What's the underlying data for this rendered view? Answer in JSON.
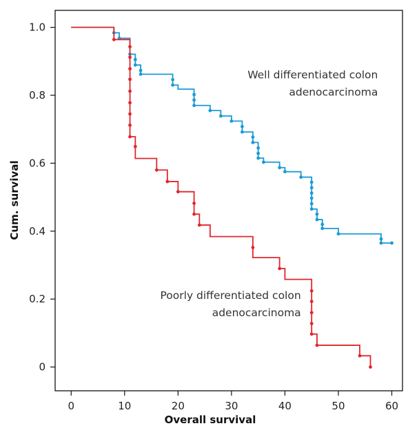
{
  "chart_data": {
    "type": "line",
    "subtype": "kaplan-meier-step",
    "xlabel": "Overall survival",
    "ylabel": "Cum. survival",
    "xlim": [
      -3,
      62
    ],
    "ylim": [
      -0.07,
      1.05
    ],
    "x_ticks": [
      0,
      10,
      20,
      30,
      40,
      50,
      60
    ],
    "x_tick_labels": [
      "0",
      "10",
      "20",
      "30",
      "40",
      "50",
      "60"
    ],
    "y_ticks": [
      0,
      0.2,
      0.4,
      0.6,
      0.8,
      1.0
    ],
    "y_tick_labels": [
      "0",
      "0.2",
      "0.4",
      "0.6",
      "0.8",
      "1.0"
    ],
    "grid": false,
    "legend": "none",
    "series": [
      {
        "name": "Well differentiated colon adenocarcinoma",
        "color": "#1a9ad6",
        "steps": [
          [
            0,
            1.0
          ],
          [
            8,
            0.984
          ],
          [
            9,
            0.968
          ],
          [
            11,
            0.921
          ],
          [
            12,
            0.905
          ],
          [
            12,
            0.889
          ],
          [
            13,
            0.873
          ],
          [
            13,
            0.862
          ],
          [
            19,
            0.846
          ],
          [
            19,
            0.83
          ],
          [
            20,
            0.818
          ],
          [
            23,
            0.802
          ],
          [
            23,
            0.786
          ],
          [
            23,
            0.77
          ],
          [
            26,
            0.755
          ],
          [
            28,
            0.739
          ],
          [
            30,
            0.724
          ],
          [
            32,
            0.708
          ],
          [
            32,
            0.692
          ],
          [
            34,
            0.677
          ],
          [
            34,
            0.661
          ],
          [
            35,
            0.645
          ],
          [
            35,
            0.629
          ],
          [
            35,
            0.615
          ],
          [
            36,
            0.603
          ],
          [
            39,
            0.587
          ],
          [
            40,
            0.575
          ],
          [
            43,
            0.559
          ],
          [
            45,
            0.544
          ],
          [
            45,
            0.528
          ],
          [
            45,
            0.512
          ],
          [
            45,
            0.497
          ],
          [
            45,
            0.481
          ],
          [
            45,
            0.465
          ],
          [
            46,
            0.45
          ],
          [
            46,
            0.434
          ],
          [
            47,
            0.42
          ],
          [
            47,
            0.408
          ],
          [
            50,
            0.392
          ],
          [
            58,
            0.377
          ],
          [
            58,
            0.365
          ],
          [
            60,
            0.365
          ]
        ],
        "censored": [
          [
            8,
            0.984
          ],
          [
            9,
            0.968
          ],
          [
            11,
            0.921
          ],
          [
            12,
            0.905
          ],
          [
            12,
            0.889
          ],
          [
            13,
            0.873
          ],
          [
            13,
            0.862
          ],
          [
            19,
            0.846
          ],
          [
            19,
            0.83
          ],
          [
            23,
            0.802
          ],
          [
            23,
            0.786
          ],
          [
            23,
            0.77
          ],
          [
            26,
            0.755
          ],
          [
            28,
            0.739
          ],
          [
            30,
            0.724
          ],
          [
            32,
            0.708
          ],
          [
            32,
            0.692
          ],
          [
            34,
            0.677
          ],
          [
            34,
            0.661
          ],
          [
            35,
            0.645
          ],
          [
            35,
            0.629
          ],
          [
            35,
            0.615
          ],
          [
            36,
            0.603
          ],
          [
            39,
            0.587
          ],
          [
            40,
            0.575
          ],
          [
            43,
            0.559
          ],
          [
            45,
            0.544
          ],
          [
            45,
            0.528
          ],
          [
            45,
            0.512
          ],
          [
            45,
            0.497
          ],
          [
            45,
            0.481
          ],
          [
            45,
            0.465
          ],
          [
            46,
            0.45
          ],
          [
            46,
            0.434
          ],
          [
            47,
            0.42
          ],
          [
            47,
            0.408
          ],
          [
            50,
            0.392
          ],
          [
            58,
            0.377
          ],
          [
            58,
            0.365
          ],
          [
            60,
            0.365
          ]
        ]
      },
      {
        "name": "Poorly differentiated colon adenocarcinoma",
        "color": "#e0262b",
        "steps": [
          [
            0,
            1.0
          ],
          [
            8,
            0.964
          ],
          [
            11,
            0.943
          ],
          [
            11,
            0.912
          ],
          [
            11,
            0.878
          ],
          [
            11,
            0.847
          ],
          [
            11,
            0.812
          ],
          [
            11,
            0.778
          ],
          [
            11,
            0.745
          ],
          [
            11,
            0.712
          ],
          [
            11,
            0.678
          ],
          [
            12,
            0.649
          ],
          [
            12,
            0.614
          ],
          [
            16,
            0.58
          ],
          [
            18,
            0.546
          ],
          [
            20,
            0.516
          ],
          [
            23,
            0.482
          ],
          [
            23,
            0.45
          ],
          [
            24,
            0.418
          ],
          [
            26,
            0.384
          ],
          [
            34,
            0.352
          ],
          [
            34,
            0.322
          ],
          [
            39,
            0.29
          ],
          [
            40,
            0.258
          ],
          [
            45,
            0.224
          ],
          [
            45,
            0.193
          ],
          [
            45,
            0.16
          ],
          [
            45,
            0.128
          ],
          [
            45,
            0.097
          ],
          [
            46,
            0.064
          ],
          [
            54,
            0.033
          ],
          [
            56,
            0.0
          ]
        ],
        "censored": [
          [
            8,
            0.964
          ],
          [
            11,
            0.943
          ],
          [
            11,
            0.912
          ],
          [
            11,
            0.878
          ],
          [
            11,
            0.847
          ],
          [
            11,
            0.812
          ],
          [
            11,
            0.778
          ],
          [
            11,
            0.745
          ],
          [
            11,
            0.712
          ],
          [
            11,
            0.678
          ],
          [
            12,
            0.649
          ],
          [
            16,
            0.58
          ],
          [
            18,
            0.546
          ],
          [
            20,
            0.516
          ],
          [
            23,
            0.482
          ],
          [
            23,
            0.45
          ],
          [
            24,
            0.418
          ],
          [
            34,
            0.352
          ],
          [
            39,
            0.29
          ],
          [
            45,
            0.224
          ],
          [
            45,
            0.193
          ],
          [
            45,
            0.16
          ],
          [
            45,
            0.128
          ],
          [
            45,
            0.097
          ],
          [
            46,
            0.064
          ],
          [
            54,
            0.033
          ],
          [
            56,
            0.0
          ]
        ]
      }
    ],
    "annotations": [
      {
        "lines": [
          "Well differentiated colon",
          "adenocarcinoma"
        ],
        "series": 0,
        "align": "right",
        "anchor": [
          57.4,
          0.85
        ]
      },
      {
        "lines": [
          "Poorly differentiated colon",
          "adenocarcinoma"
        ],
        "series": 1,
        "align": "right",
        "anchor": [
          43.0,
          0.2
        ]
      }
    ]
  }
}
